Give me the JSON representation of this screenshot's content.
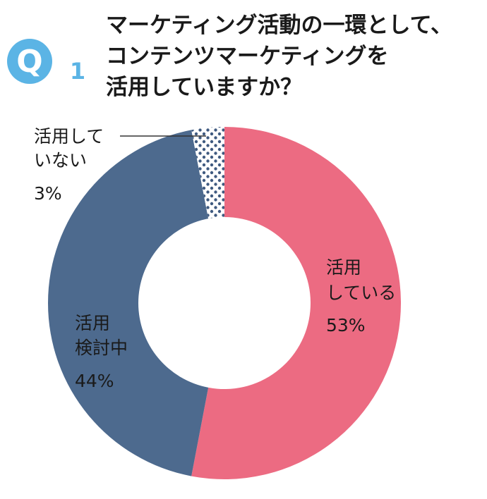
{
  "question": {
    "letter": "Q",
    "number": "1",
    "title_lines": [
      "マーケティング活動の一環として、",
      "コンテンツマーケティングを",
      "活用していますか？"
    ]
  },
  "colors": {
    "badge": "#5bb4e5",
    "using": "#ec6b82",
    "considering": "#4d6a8e",
    "not_using": "#3f5a80",
    "background": "#ffffff"
  },
  "chart_data": {
    "type": "pie",
    "donut": true,
    "slices": [
      {
        "key": "using",
        "label_lines": [
          "活用",
          "している"
        ],
        "value": 53,
        "value_label": "53%",
        "pattern": "solid"
      },
      {
        "key": "considering",
        "label_lines": [
          "活用",
          "検討中"
        ],
        "value": 44,
        "value_label": "44%",
        "pattern": "solid"
      },
      {
        "key": "not_using",
        "label_lines": [
          "活用して",
          "いない"
        ],
        "value": 3,
        "value_label": "3%",
        "pattern": "dots"
      }
    ]
  }
}
